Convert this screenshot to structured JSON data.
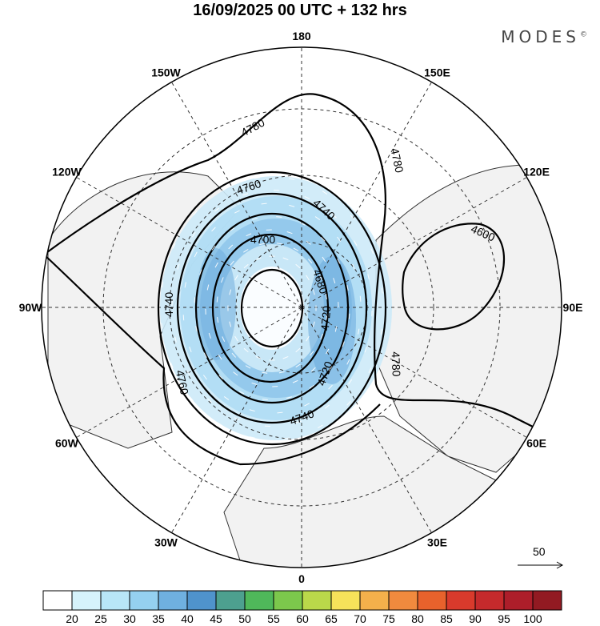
{
  "title": "16/09/2025  00 UTC  + 132 hrs",
  "brand": "MODES",
  "brand_mark": "©",
  "map": {
    "type": "polar-stereographic",
    "longitude_labels": [
      {
        "text": "180",
        "lon": 180
      },
      {
        "text": "150E",
        "lon": 150
      },
      {
        "text": "120E",
        "lon": 120
      },
      {
        "text": "90E",
        "lon": 90
      },
      {
        "text": "60E",
        "lon": 60
      },
      {
        "text": "30E",
        "lon": 30
      },
      {
        "text": "0",
        "lon": 0
      },
      {
        "text": "30W",
        "lon": -30
      },
      {
        "text": "60W",
        "lon": -60
      },
      {
        "text": "90W",
        "lon": -90
      },
      {
        "text": "120W",
        "lon": -120
      },
      {
        "text": "150W",
        "lon": -150
      }
    ],
    "contour_labels": [
      "4780",
      "4780",
      "4760",
      "4740",
      "4700",
      "4680",
      "4720",
      "4720",
      "4740",
      "4740",
      "4760",
      "4780",
      "4600"
    ],
    "wind_reference": {
      "label": "50"
    }
  },
  "colorbar": {
    "colors": [
      "#ffffff",
      "#d6f3fb",
      "#b8e6f7",
      "#95d0f0",
      "#6fb0e0",
      "#4f93cc",
      "#4da08f",
      "#4fb85a",
      "#7cc84c",
      "#bad84a",
      "#f6e25a",
      "#f4b04b",
      "#f08a3e",
      "#e8622c",
      "#d93a2c",
      "#c52a2c",
      "#ad1e2a",
      "#921a22"
    ],
    "labels": [
      "20",
      "25",
      "30",
      "35",
      "40",
      "45",
      "50",
      "55",
      "60",
      "65",
      "70",
      "75",
      "80",
      "85",
      "90",
      "95",
      "100"
    ]
  }
}
